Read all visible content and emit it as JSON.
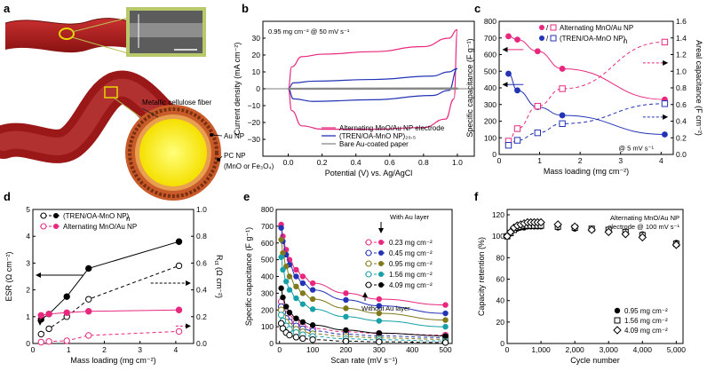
{
  "panels": {
    "a": {
      "label": "a",
      "texts": {
        "fiber": "Metallic cellulose fiber",
        "au": "Au NP",
        "pc": "PC NP",
        "pc2": "(MnO or Fe₃O₄)"
      }
    },
    "b": {
      "label": "b"
    },
    "c": {
      "label": "c"
    },
    "d": {
      "label": "d"
    },
    "e": {
      "label": "e"
    },
    "f": {
      "label": "f"
    }
  },
  "chart_data": [
    {
      "id": "b",
      "type": "line",
      "title": "0.95 mg cm⁻² @ 50 mV s⁻¹",
      "xlabel": "Potential (V) vs. Ag/AgCl",
      "ylabel": "Current density (mA cm⁻²)",
      "xlim": [
        -0.15,
        1.1
      ],
      "ylim": [
        -40,
        40
      ],
      "xticks": [
        0.0,
        0.2,
        0.4,
        0.6,
        0.8,
        1.0
      ],
      "xtick_labels": [
        "0.0",
        "0.2",
        "0.4",
        "0.6",
        "0.8",
        "1.0"
      ],
      "yticks": [
        -30,
        -20,
        -10,
        0,
        10,
        20,
        30
      ],
      "ytick_labels": [
        "−30",
        "−20",
        "−10",
        "0",
        "10",
        "20",
        "30"
      ],
      "series": [
        {
          "name": "Alternating MnO/Au NP electrode",
          "color": "#e8287f",
          "upper": [
            [
              0.0,
              0
            ],
            [
              0.02,
              13
            ],
            [
              0.08,
              19
            ],
            [
              0.2,
              20.5
            ],
            [
              0.5,
              22
            ],
            [
              0.8,
              25
            ],
            [
              0.95,
              30
            ],
            [
              1.0,
              35
            ]
          ],
          "lower": [
            [
              0.0,
              0
            ],
            [
              0.02,
              -13
            ],
            [
              0.08,
              -22
            ],
            [
              0.2,
              -24
            ],
            [
              0.5,
              -24
            ],
            [
              0.8,
              -23
            ],
            [
              0.93,
              -18
            ],
            [
              0.98,
              -6
            ],
            [
              1.0,
              35
            ]
          ]
        },
        {
          "name": "(TREN/OA-MnO NP)₂₀.₅",
          "color": "#2333b5",
          "upper": [
            [
              0.0,
              0
            ],
            [
              0.03,
              3.5
            ],
            [
              0.15,
              4.5
            ],
            [
              0.5,
              5.5
            ],
            [
              0.85,
              7.5
            ],
            [
              0.95,
              10
            ],
            [
              1.0,
              12
            ]
          ],
          "lower": [
            [
              0.0,
              0
            ],
            [
              0.03,
              -6
            ],
            [
              0.15,
              -7.5
            ],
            [
              0.5,
              -6.5
            ],
            [
              0.85,
              -4
            ],
            [
              0.95,
              -1
            ],
            [
              1.0,
              12
            ]
          ]
        },
        {
          "name": "Bare Au-coated paper",
          "color": "#888888",
          "upper": [
            [
              0.0,
              0.3
            ],
            [
              1.0,
              0.5
            ]
          ],
          "lower": [
            [
              0.0,
              -0.3
            ],
            [
              1.0,
              -0.2
            ]
          ]
        }
      ]
    },
    {
      "id": "c",
      "type": "scatter",
      "xlabel": "Mass loading (mg cm⁻²)",
      "ylabel": "Specific capacitance (F g⁻¹)",
      "y2label": "Areal capacitance (F cm⁻²)",
      "annotation": "@ 5 mV s⁻¹",
      "xlim": [
        0,
        4.3
      ],
      "ylim": [
        0,
        800
      ],
      "y2lim": [
        0,
        1.6
      ],
      "xticks": [
        0,
        1,
        2,
        3,
        4
      ],
      "yticks": [
        0,
        100,
        200,
        300,
        400,
        500,
        600,
        700,
        800
      ],
      "y2ticks": [
        0.0,
        0.2,
        0.4,
        0.6,
        0.8,
        1.0,
        1.2,
        1.4,
        1.6
      ],
      "y2tick_labels": [
        "0.0",
        "0.2",
        "0.4",
        "0.6",
        "0.8",
        "1.0",
        "1.2",
        "1.4",
        "1.6"
      ],
      "x": [
        0.23,
        0.45,
        0.95,
        1.56,
        4.09
      ],
      "series": [
        {
          "name": "Alternating MnO/Au NP",
          "axis": "left",
          "filled": true,
          "color": "#e8287f",
          "values": [
            710,
            690,
            620,
            515,
            330
          ]
        },
        {
          "name": "(TREN/OA-MnO NP)n",
          "axis": "left",
          "filled": true,
          "color": "#2333b5",
          "values": [
            485,
            385,
            285,
            235,
            120
          ]
        },
        {
          "name": "Alternating MnO/Au NP",
          "axis": "right",
          "filled": false,
          "color": "#e8287f",
          "values": [
            0.16,
            0.31,
            0.58,
            0.79,
            1.35
          ]
        },
        {
          "name": "(TREN/OA-MnO NP)n",
          "axis": "right",
          "filled": false,
          "color": "#2333b5",
          "values": [
            0.11,
            0.17,
            0.26,
            0.37,
            0.61
          ]
        }
      ],
      "legend": [
        "Alternating MnO/Au NP",
        "/",
        "(TREN/OA-MnO NP)",
        "n"
      ]
    },
    {
      "id": "d",
      "type": "line",
      "xlabel": "Mass loading (mg cm⁻²)",
      "ylabel": "ESR (Ω cm⁻²)",
      "y2label": "R",
      "y2label_sub": "ct",
      "y2label_unit": " (Ω cm⁻²)",
      "xlim": [
        0,
        4.5
      ],
      "ylim": [
        0,
        5
      ],
      "y2lim": [
        0,
        1.0
      ],
      "xticks": [
        0,
        1,
        2,
        3,
        4
      ],
      "yticks": [
        0,
        1,
        2,
        3,
        4,
        5
      ],
      "y2ticks": [
        0.0,
        0.2,
        0.4,
        0.6,
        0.8,
        1.0
      ],
      "y2tick_labels": [
        "0.0",
        "0.2",
        "0.4",
        "0.6",
        "0.8",
        "1.0"
      ],
      "x": [
        0.23,
        0.45,
        0.95,
        1.56,
        4.09
      ],
      "series": [
        {
          "name": "(TREN/OA-MnO NP)n",
          "axis": "left",
          "filled": true,
          "color": "#000000",
          "values": [
            0.9,
            1.1,
            1.75,
            2.8,
            3.8
          ]
        },
        {
          "name": "(TREN/OA-MnO NP)n",
          "axis": "right",
          "filled": false,
          "color": "#000000",
          "values": [
            0.07,
            0.11,
            0.2,
            0.33,
            0.58
          ]
        },
        {
          "name": "Alternating MnO/Au NP",
          "axis": "left",
          "filled": true,
          "color": "#e8287f",
          "values": [
            1.05,
            1.1,
            1.15,
            1.2,
            1.25
          ]
        },
        {
          "name": "Alternating MnO/Au NP",
          "axis": "right",
          "filled": false,
          "color": "#e8287f",
          "values": [
            0.01,
            0.015,
            0.02,
            0.06,
            0.09
          ]
        }
      ],
      "legend": [
        "(TREN/OA-MnO NP)",
        "n",
        "Alternating MnO/Au NP"
      ]
    },
    {
      "id": "e",
      "type": "line",
      "xlabel": "Scan rate (mV s⁻¹)",
      "ylabel": "Specific capacitance (F g⁻¹)",
      "xlim": [
        -10,
        520
      ],
      "ylim": [
        0,
        800
      ],
      "xticks": [
        0,
        100,
        200,
        300,
        400,
        500
      ],
      "yticks": [
        0,
        100,
        200,
        300,
        400,
        500,
        600,
        700,
        800
      ],
      "x": [
        5,
        10,
        20,
        30,
        50,
        70,
        100,
        200,
        300,
        500
      ],
      "annotations": {
        "top": "With Au layer",
        "bottom": "Without Au layer"
      },
      "series": [
        {
          "name": "0.23 mg cm⁻²",
          "color": "#e8287f",
          "with_au": [
            710,
            640,
            560,
            500,
            440,
            400,
            360,
            300,
            265,
            230
          ],
          "without_au": [
            250,
            215,
            175,
            150,
            125,
            105,
            90,
            70,
            60,
            50
          ]
        },
        {
          "name": "0.45 mg cm⁻²",
          "color": "#2333b5",
          "with_au": [
            690,
            610,
            530,
            470,
            400,
            360,
            320,
            260,
            225,
            180
          ],
          "without_au": [
            220,
            185,
            150,
            128,
            105,
            88,
            75,
            55,
            45,
            35
          ]
        },
        {
          "name": "0.95 mg cm⁻²",
          "color": "#807a1c",
          "with_au": [
            620,
            540,
            460,
            400,
            340,
            300,
            265,
            210,
            180,
            140
          ],
          "without_au": [
            200,
            160,
            128,
            105,
            85,
            70,
            58,
            42,
            33,
            25
          ]
        },
        {
          "name": "1.56 mg cm⁻²",
          "color": "#17a0a8",
          "with_au": [
            515,
            440,
            370,
            320,
            270,
            235,
            205,
            160,
            135,
            100
          ],
          "without_au": [
            170,
            135,
            105,
            85,
            65,
            52,
            42,
            28,
            22,
            15
          ]
        },
        {
          "name": "4.09 mg cm⁻²",
          "color": "#000000",
          "with_au": [
            330,
            275,
            220,
            185,
            150,
            128,
            110,
            80,
            62,
            45
          ],
          "without_au": [
            120,
            90,
            65,
            50,
            38,
            30,
            23,
            14,
            10,
            6
          ]
        }
      ]
    },
    {
      "id": "f",
      "type": "scatter",
      "xlabel": "Cycle number",
      "ylabel": "Capacity retention (%)",
      "title": "Alternating MnO/Au NP",
      "subtitle": "electrode @ 100 mV s⁻¹",
      "xlim": [
        0,
        5200
      ],
      "ylim": [
        0,
        125
      ],
      "xticks": [
        0,
        1000,
        2000,
        3000,
        4000,
        5000
      ],
      "xtick_labels": [
        "0",
        "1,000",
        "2,000",
        "3,000",
        "4,000",
        "5,000"
      ],
      "yticks": [
        0,
        20,
        40,
        60,
        80,
        100,
        120
      ],
      "x": [
        0,
        100,
        200,
        300,
        400,
        500,
        600,
        700,
        800,
        900,
        1000,
        1500,
        2000,
        2500,
        3000,
        3500,
        4000,
        5000
      ],
      "series": [
        {
          "name": "0.95 mg cm⁻²",
          "marker": "circle",
          "values": [
            100,
            104,
            106,
            107,
            108,
            108,
            109,
            109,
            109,
            109,
            109,
            108,
            107,
            106,
            105,
            104,
            102,
            94
          ]
        },
        {
          "name": "1.56 mg cm⁻²",
          "marker": "square",
          "values": [
            100,
            103,
            106,
            108,
            109,
            110,
            110,
            110,
            110,
            110,
            110,
            109,
            108,
            107,
            106,
            104,
            101,
            93
          ]
        },
        {
          "name": "4.09 mg cm⁻²",
          "marker": "diamond",
          "values": [
            100,
            104,
            108,
            110,
            111,
            112,
            113,
            113,
            113,
            113,
            113,
            111,
            109,
            106,
            104,
            102,
            99,
            92
          ]
        }
      ]
    }
  ]
}
